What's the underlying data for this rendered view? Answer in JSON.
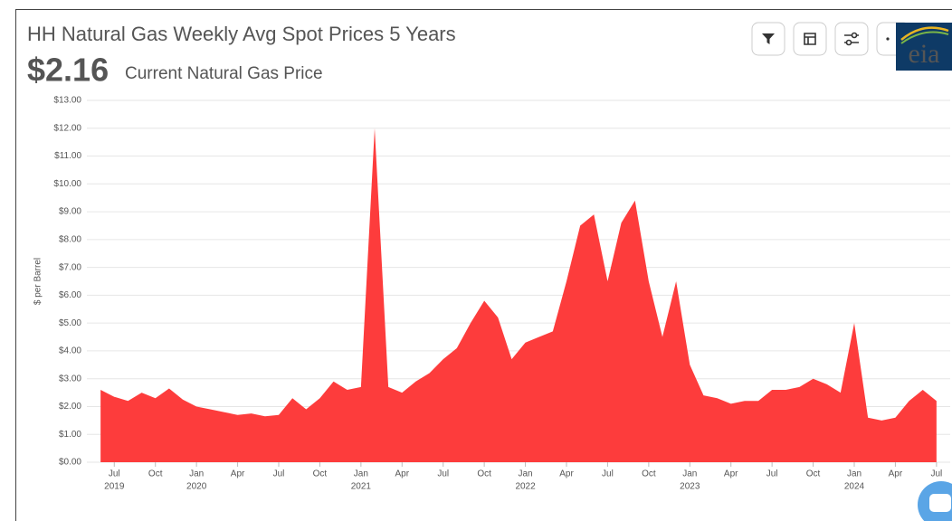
{
  "chart_data": {
    "type": "area",
    "title": "HH Natural Gas Weekly Avg Spot Prices 5 Years",
    "headline": "$2.16",
    "subtitle": "Current Natural Gas Price",
    "ylabel": "$ per Barrel",
    "logo": "eia",
    "color": "#fd3c3c",
    "grid": true,
    "x": [
      "2019-06",
      "2019-07",
      "2019-08",
      "2019-09",
      "2019-10",
      "2019-11",
      "2019-12",
      "2020-01",
      "2020-02",
      "2020-03",
      "2020-04",
      "2020-05",
      "2020-06",
      "2020-07",
      "2020-08",
      "2020-09",
      "2020-10",
      "2020-11",
      "2020-12",
      "2021-01",
      "2021-02",
      "2021-03",
      "2021-04",
      "2021-05",
      "2021-06",
      "2021-07",
      "2021-08",
      "2021-09",
      "2021-10",
      "2021-11",
      "2021-12",
      "2022-01",
      "2022-02",
      "2022-03",
      "2022-04",
      "2022-05",
      "2022-06",
      "2022-07",
      "2022-08",
      "2022-09",
      "2022-10",
      "2022-11",
      "2022-12",
      "2023-01",
      "2023-02",
      "2023-03",
      "2023-04",
      "2023-05",
      "2023-06",
      "2023-07",
      "2023-08",
      "2023-09",
      "2023-10",
      "2023-11",
      "2023-12",
      "2024-01",
      "2024-02",
      "2024-03",
      "2024-04",
      "2024-05",
      "2024-06",
      "2024-07"
    ],
    "values": [
      2.6,
      2.35,
      2.2,
      2.5,
      2.3,
      2.65,
      2.25,
      2.0,
      1.9,
      1.8,
      1.7,
      1.75,
      1.65,
      1.7,
      2.3,
      1.9,
      2.3,
      2.9,
      2.6,
      2.7,
      12.0,
      2.7,
      2.5,
      2.9,
      3.2,
      3.7,
      4.1,
      5.0,
      5.8,
      5.2,
      3.7,
      4.3,
      4.5,
      4.7,
      6.5,
      8.5,
      8.9,
      6.5,
      8.6,
      9.4,
      6.5,
      4.5,
      6.5,
      3.5,
      2.4,
      2.3,
      2.1,
      2.2,
      2.2,
      2.6,
      2.6,
      2.7,
      3.0,
      2.8,
      2.5,
      5.0,
      1.6,
      1.5,
      1.6,
      2.2,
      2.6,
      2.2
    ],
    "xlim": [
      "2019-05",
      "2024-08"
    ],
    "xticks": [
      {
        "value": "2019-07",
        "label": "Jul",
        "year": "2019"
      },
      {
        "value": "2019-10",
        "label": "Oct"
      },
      {
        "value": "2020-01",
        "label": "Jan",
        "year": "2020"
      },
      {
        "value": "2020-04",
        "label": "Apr"
      },
      {
        "value": "2020-07",
        "label": "Jul"
      },
      {
        "value": "2020-10",
        "label": "Oct"
      },
      {
        "value": "2021-01",
        "label": "Jan",
        "year": "2021"
      },
      {
        "value": "2021-04",
        "label": "Apr"
      },
      {
        "value": "2021-07",
        "label": "Jul"
      },
      {
        "value": "2021-10",
        "label": "Oct"
      },
      {
        "value": "2022-01",
        "label": "Jan",
        "year": "2022"
      },
      {
        "value": "2022-04",
        "label": "Apr"
      },
      {
        "value": "2022-07",
        "label": "Jul"
      },
      {
        "value": "2022-10",
        "label": "Oct"
      },
      {
        "value": "2023-01",
        "label": "Jan",
        "year": "2023"
      },
      {
        "value": "2023-04",
        "label": "Apr"
      },
      {
        "value": "2023-07",
        "label": "Jul"
      },
      {
        "value": "2023-10",
        "label": "Oct"
      },
      {
        "value": "2024-01",
        "label": "Jan",
        "year": "2024"
      },
      {
        "value": "2024-04",
        "label": "Apr"
      },
      {
        "value": "2024-07",
        "label": "Jul"
      }
    ],
    "ylim": [
      0,
      13
    ],
    "yticks": [
      {
        "value": 0,
        "label": "$0.00"
      },
      {
        "value": 1,
        "label": "$1.00"
      },
      {
        "value": 2,
        "label": "$2.00"
      },
      {
        "value": 3,
        "label": "$3.00"
      },
      {
        "value": 4,
        "label": "$4.00"
      },
      {
        "value": 5,
        "label": "$5.00"
      },
      {
        "value": 6,
        "label": "$6.00"
      },
      {
        "value": 7,
        "label": "$7.00"
      },
      {
        "value": 8,
        "label": "$8.00"
      },
      {
        "value": 9,
        "label": "$9.00"
      },
      {
        "value": 10,
        "label": "$10.00"
      },
      {
        "value": 11,
        "label": "$11.00"
      },
      {
        "value": 12,
        "label": "$12.00"
      },
      {
        "value": 13,
        "label": "$13.00"
      }
    ]
  }
}
